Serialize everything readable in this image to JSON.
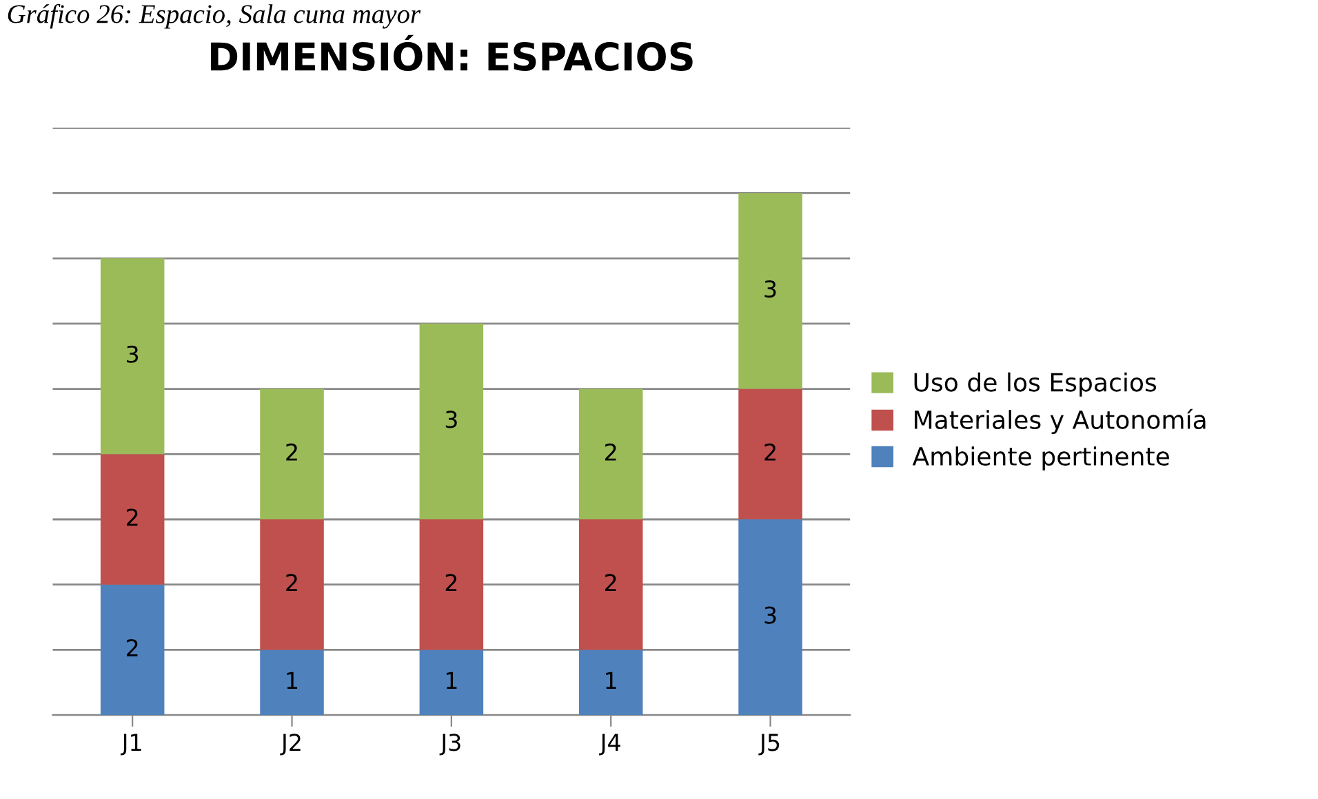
{
  "chart_data": {
    "type": "bar",
    "stacked": true,
    "title": "DIMENSIÓN: ESPACIOS",
    "annotations": [
      "Gráfico 26: Espacio, Sala cuna mayor"
    ],
    "categories": [
      "J1",
      "J2",
      "J3",
      "J4",
      "J5"
    ],
    "series": [
      {
        "name": "Ambiente pertinente",
        "color": "#4f81bd",
        "values": [
          2,
          1,
          1,
          1,
          3
        ]
      },
      {
        "name": "Materiales y Autonomía",
        "color": "#c0504d",
        "values": [
          2,
          2,
          2,
          2,
          2
        ]
      },
      {
        "name": "Uso de los Espacios",
        "color": "#9bbb59",
        "values": [
          3,
          2,
          3,
          2,
          3
        ]
      }
    ],
    "ylim": [
      0,
      9
    ],
    "yticks": [
      {
        "value": 0,
        "label": null
      },
      {
        "value": 1,
        "label": null
      },
      {
        "value": 2,
        "label": null
      },
      {
        "value": 3,
        "label": null
      },
      {
        "value": 4,
        "label": null
      },
      {
        "value": 5,
        "label": null
      },
      {
        "value": 6,
        "label": null
      },
      {
        "value": 7,
        "label": null
      },
      {
        "value": 8,
        "label": null
      },
      {
        "value": 9,
        "label": null
      }
    ],
    "grid": "y",
    "legend": "right",
    "data_labels": true,
    "tick_labels": "x"
  }
}
